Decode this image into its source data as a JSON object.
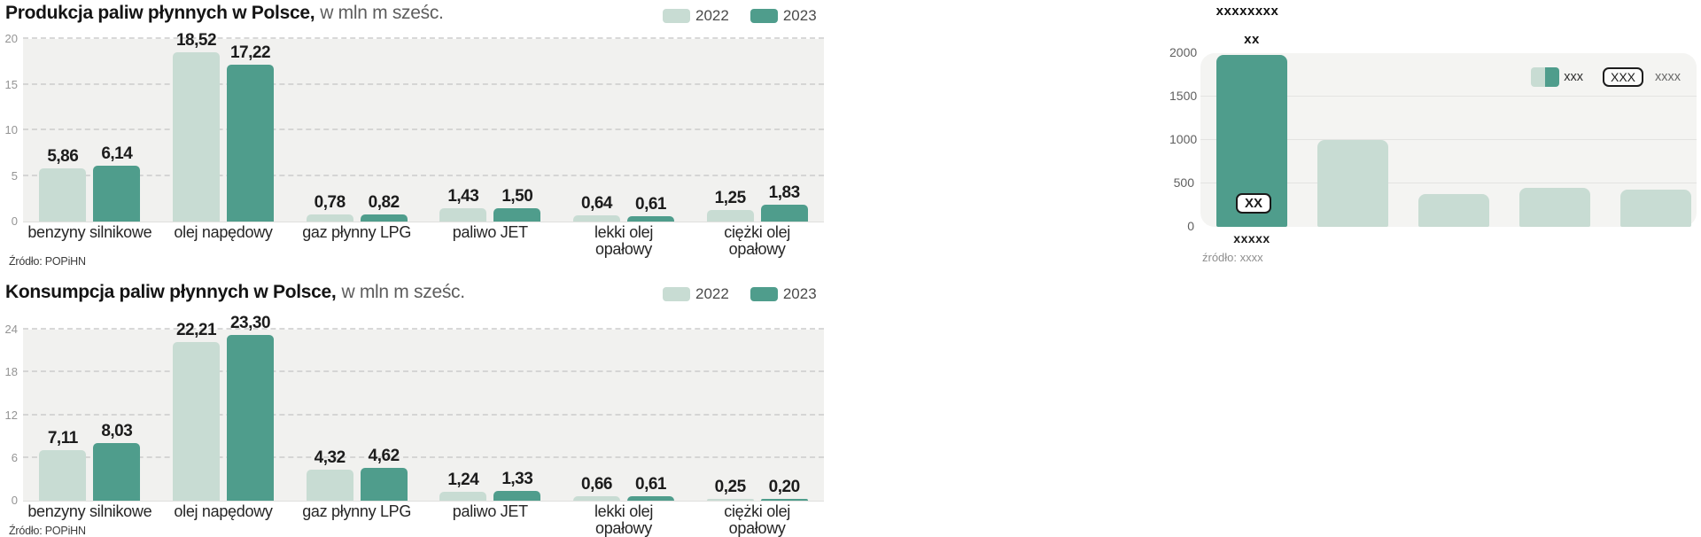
{
  "colors": {
    "series_2022_light": "#c8dcd3",
    "series_2023_dark": "#4f9d8c",
    "plot_background": "#f1f1ef",
    "right_plot_background": "#f4f4f2",
    "gridline_dashed": "#cccccc",
    "gridline_solid": "#e3e3e1"
  },
  "chart_data": [
    {
      "type": "bar",
      "title": "Produkcja paliw płynnych w Polsce,",
      "subtitle": "w mln m sześc.",
      "categories": [
        [
          "benzyny silnikowe"
        ],
        [
          "olej napędowy"
        ],
        [
          "gaz płynny LPG"
        ],
        [
          "paliwo JET"
        ],
        [
          "lekki olej",
          "opałowy"
        ],
        [
          "ciężki olej",
          "opałowy"
        ]
      ],
      "series": [
        {
          "name": "2022",
          "values": [
            5.86,
            18.52,
            0.78,
            1.43,
            0.64,
            1.25
          ]
        },
        {
          "name": "2023",
          "values": [
            6.14,
            17.22,
            0.82,
            1.5,
            0.61,
            1.83
          ]
        }
      ],
      "ylim": [
        0,
        20
      ],
      "yticks": [
        0,
        5,
        10,
        15,
        20
      ],
      "grid": "dashed",
      "legend_position": "top-right",
      "value_label_decimal_separator": ",",
      "source": "Źródło: POPiHN"
    },
    {
      "type": "bar",
      "title": "Konsumpcja paliw płynnych w Polsce,",
      "subtitle": "w mln m sześc.",
      "categories": [
        [
          "benzyny silnikowe"
        ],
        [
          "olej napędowy"
        ],
        [
          "gaz płynny LPG"
        ],
        [
          "paliwo JET"
        ],
        [
          "lekki olej",
          "opałowy"
        ],
        [
          "ciężki olej",
          "opałowy"
        ]
      ],
      "series": [
        {
          "name": "2022",
          "values": [
            7.11,
            22.21,
            4.32,
            1.24,
            0.66,
            0.25
          ]
        },
        {
          "name": "2023",
          "values": [
            8.03,
            23.3,
            4.62,
            1.33,
            0.61,
            0.2
          ]
        }
      ],
      "ylim": [
        0,
        24
      ],
      "yticks": [
        0,
        6,
        12,
        18,
        24
      ],
      "grid": "dashed",
      "legend_position": "top-right",
      "value_label_decimal_separator": ",",
      "source": "Źródło: POPiHN"
    },
    {
      "type": "bar",
      "title": "xxxxxxxx",
      "top_label": "xx",
      "categories": [
        "xxxxx"
      ],
      "values": [
        1975,
        1000,
        380,
        450,
        430
      ],
      "bar_styles": [
        "dark",
        "light",
        "light",
        "light",
        "light"
      ],
      "ylim": [
        0,
        2000
      ],
      "yticks": [
        0,
        500,
        1000,
        1500,
        2000
      ],
      "grid": "solid",
      "legend": {
        "swatches_label": "xxx",
        "boxed_label": "XXX",
        "plain_label": "xxxx"
      },
      "annotation_box": "XX",
      "source": "źródło: xxxx"
    }
  ]
}
